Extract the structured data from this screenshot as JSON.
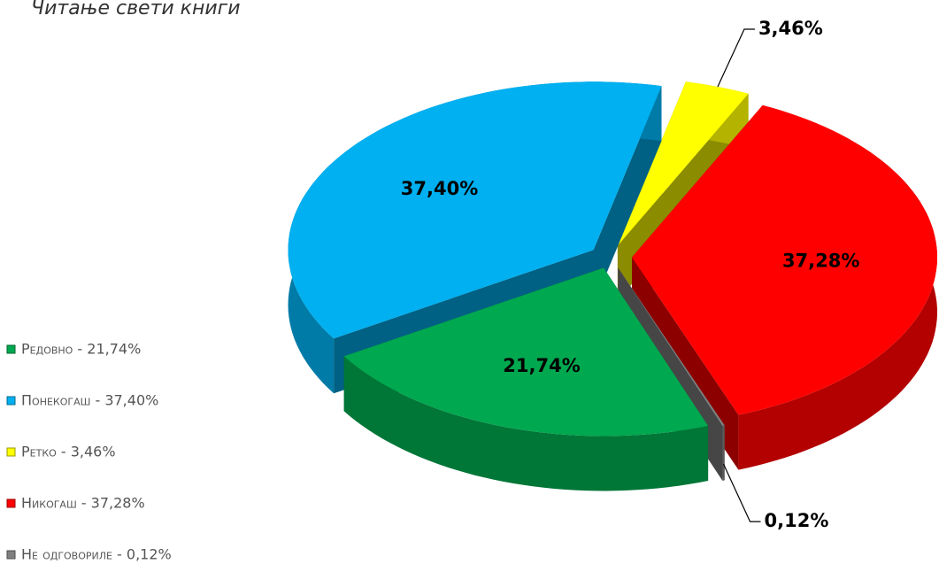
{
  "chart_data": {
    "type": "pie",
    "title": "Читање свети книги",
    "categories": [
      "Редовно - 21,74%",
      "Понекогаш - 37,40%",
      "Ретко - 3,46%",
      "Никогаш - 37,28%",
      "Не одговориле - 0,12%"
    ],
    "values": [
      21.74,
      37.4,
      3.46,
      37.28,
      0.12
    ],
    "value_labels": [
      "21,74%",
      "37,40%",
      "3,46%",
      "37,28%",
      "0,12%"
    ],
    "colors": [
      "#00a84f",
      "#00b0f0",
      "#ffff00",
      "#ff0000",
      "#808080"
    ],
    "legend": "left"
  }
}
